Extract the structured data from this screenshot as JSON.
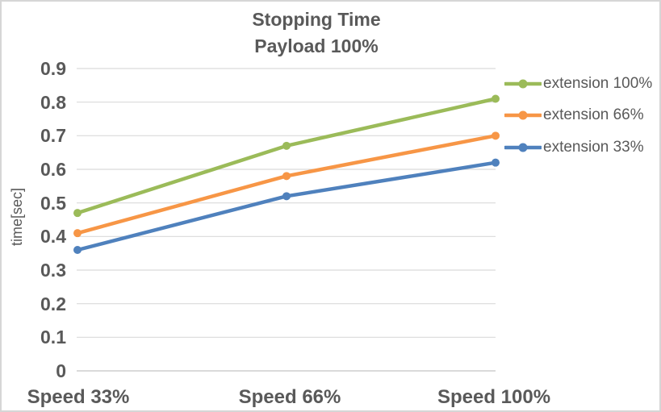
{
  "chart_data": {
    "type": "line",
    "title": "Stopping Time Payload 100%",
    "title_lines": [
      "Stopping Time",
      "Payload 100%"
    ],
    "categories": [
      "Speed 33%",
      "Speed 66%",
      "Speed 100%"
    ],
    "series": [
      {
        "name": "extension 100%",
        "color": "#9BBB59",
        "values": [
          0.47,
          0.67,
          0.81
        ]
      },
      {
        "name": "extension 66%",
        "color": "#F79646",
        "values": [
          0.41,
          0.58,
          0.7
        ]
      },
      {
        "name": "extension 33%",
        "color": "#4F81BD",
        "values": [
          0.36,
          0.52,
          0.62
        ]
      }
    ],
    "xlabel": "",
    "ylabel": "time[sec]",
    "ylim": [
      0,
      0.9
    ],
    "ytick_step": 0.1,
    "yticks": [
      {
        "label": "0.9",
        "value": 0.9
      },
      {
        "label": "0.8",
        "value": 0.8
      },
      {
        "label": "0.7",
        "value": 0.7
      },
      {
        "label": "0.6",
        "value": 0.6
      },
      {
        "label": "0.5",
        "value": 0.5
      },
      {
        "label": "0.4",
        "value": 0.4
      },
      {
        "label": "0.3",
        "value": 0.3
      },
      {
        "label": "0.2",
        "value": 0.2
      },
      {
        "label": "0.1",
        "value": 0.1
      },
      {
        "label": "0",
        "value": 0.0
      }
    ],
    "grid": true,
    "legend_position": "right",
    "marker": "circle"
  },
  "styles": {
    "text_color": "#595959",
    "grid_color": "#D9D9D9",
    "axis_color": "#CDCDCD",
    "background": "#FFFFFF",
    "border_color": "#D6D6D6"
  }
}
